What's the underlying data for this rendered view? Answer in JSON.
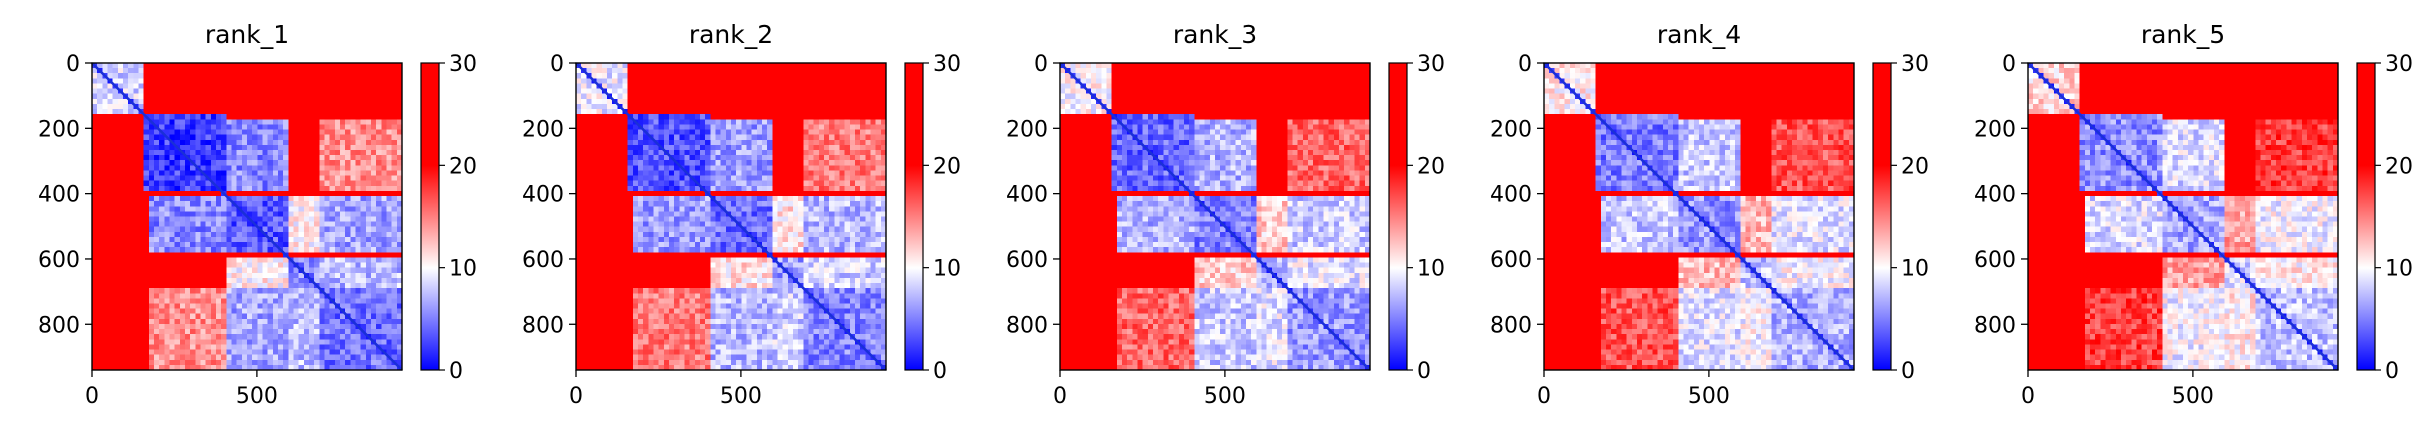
{
  "chart_data": {
    "type": "heatmap",
    "panels": [
      {
        "title": "rank_1"
      },
      {
        "title": "rank_2"
      },
      {
        "title": "rank_3"
      },
      {
        "title": "rank_4"
      },
      {
        "title": "rank_5"
      }
    ],
    "xlim": [
      0,
      940
    ],
    "ylim": [
      940,
      0
    ],
    "x_ticks": [
      0,
      500
    ],
    "y_ticks": [
      0,
      200,
      400,
      600,
      800
    ],
    "colorbar": {
      "vmin": 0,
      "vmax": 30,
      "ticks": [
        0,
        10,
        20,
        30
      ],
      "colors": [
        "#0000ff",
        "#ffffff",
        "#ff0000"
      ]
    },
    "blocks": [
      [
        0,
        150,
        10
      ],
      [
        150,
        410,
        4
      ],
      [
        410,
        590,
        5
      ],
      [
        590,
        690,
        7
      ],
      [
        690,
        940,
        6
      ]
    ],
    "interblock": [
      [
        170,
        400,
        410,
        590,
        7
      ],
      [
        410,
        590,
        690,
        940,
        8
      ],
      [
        170,
        400,
        690,
        940,
        16
      ],
      [
        590,
        690,
        690,
        940,
        9
      ],
      [
        410,
        590,
        590,
        690,
        12
      ]
    ],
    "stripes": [
      400,
      590
    ],
    "grid": false
  },
  "labels": {
    "x_ticks": [
      "0",
      "500"
    ],
    "y_ticks": [
      "0",
      "200",
      "400",
      "600",
      "800"
    ],
    "cbar_ticks": [
      "0",
      "10",
      "20",
      "30"
    ]
  }
}
